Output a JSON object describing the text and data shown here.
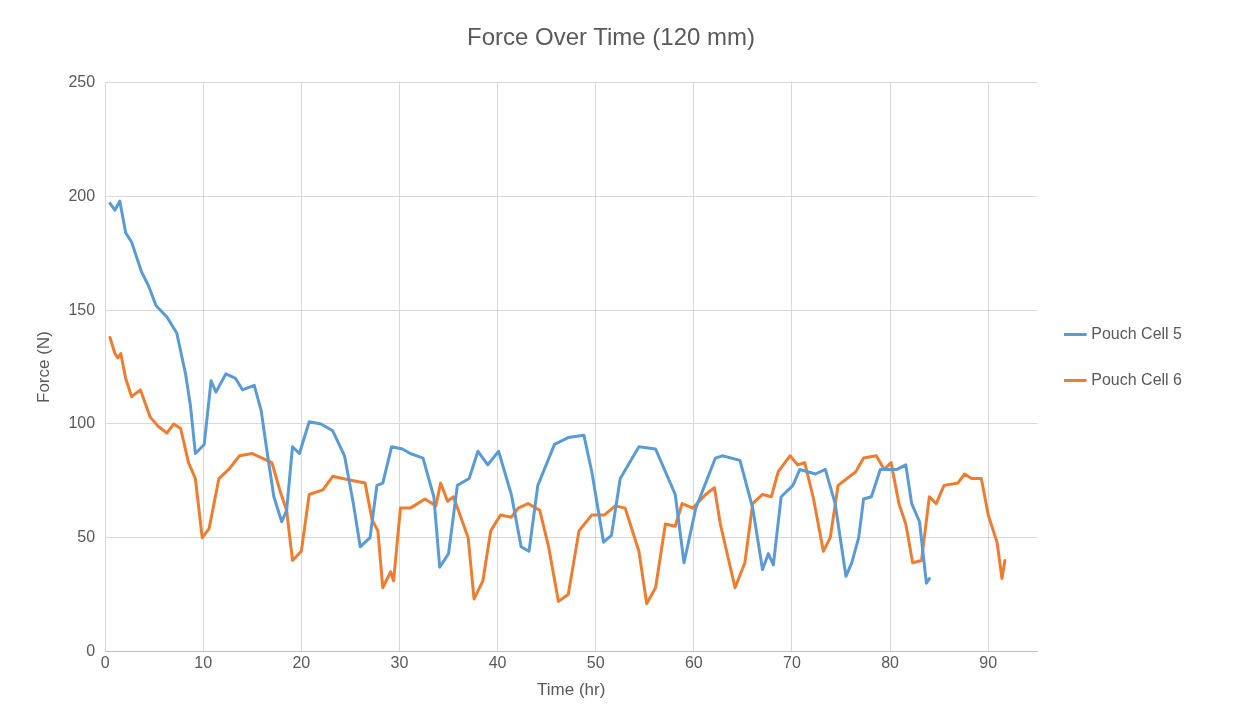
{
  "chart_data": {
    "type": "line",
    "title": "Force Over Time (120 mm)",
    "xlabel": "Time (hr)",
    "ylabel": "Force (N)",
    "xlim": [
      0,
      95
    ],
    "xticks": [
      0,
      10,
      20,
      30,
      40,
      50,
      60,
      70,
      80,
      90
    ],
    "ylim": [
      0,
      250
    ],
    "yticks": [
      0,
      50,
      100,
      150,
      200,
      250
    ],
    "grid": true,
    "legend": "right",
    "marker": "none",
    "line_style": "solid",
    "series": [
      {
        "name": "Pouch Cell 5",
        "color": "#5b9bd5",
        "x": [
          0.5,
          1,
          1.5,
          2.1,
          2.7,
          3.7,
          4.4,
          5.2,
          6.3,
          7.3,
          8.2,
          8.7,
          9.2,
          10.1,
          10.8,
          11.3,
          12.3,
          13.3,
          14,
          15.2,
          15.9,
          16.5,
          17.2,
          18,
          18.5,
          19.1,
          19.8,
          20.8,
          22,
          23.2,
          24.4,
          25.3,
          26,
          27,
          27.7,
          28.3,
          29.2,
          30.3,
          31.1,
          32.4,
          33.5,
          34.1,
          35,
          35.9,
          37.1,
          38,
          39,
          40.1,
          41.4,
          42.4,
          43.2,
          44.1,
          45.8,
          47.2,
          48.8,
          49.6,
          50.8,
          51.6,
          52.5,
          54.4,
          56.1,
          58.1,
          59,
          60.2,
          62.2,
          62.9,
          64.7,
          66,
          67,
          67.6,
          68.1,
          68.9,
          70.1,
          70.8,
          72.4,
          73.4,
          74.4,
          75.5,
          76.1,
          76.8,
          77.3,
          78.1,
          79,
          80.7,
          81.6,
          82.2,
          83,
          83.7,
          84
        ],
        "values": [
          197,
          194,
          198,
          184,
          180,
          167,
          161,
          152,
          147,
          140,
          122,
          108,
          87,
          91,
          119,
          114,
          122,
          120,
          115,
          117,
          106,
          88,
          68,
          57,
          62,
          90,
          87,
          101,
          100,
          97,
          86,
          65,
          46,
          50,
          73,
          74,
          90,
          89,
          87,
          85,
          68,
          37,
          43,
          73,
          76,
          88,
          82,
          88,
          69,
          46,
          44,
          73,
          91,
          94,
          95,
          79,
          48,
          51,
          76,
          90,
          89,
          69,
          39,
          63,
          85,
          86,
          84,
          63,
          36,
          43,
          38,
          68,
          73,
          80,
          78,
          80,
          65,
          33,
          39,
          50,
          67,
          68,
          80,
          80,
          82,
          65,
          57,
          30,
          32
        ]
      },
      {
        "name": "Pouch Cell 6",
        "color": "#ed7d31",
        "x": [
          0.5,
          1,
          1.3,
          1.6,
          2.1,
          2.7,
          3.6,
          4.6,
          5.4,
          6.3,
          7,
          7.7,
          8.5,
          9.2,
          9.9,
          10.6,
          11.6,
          12.6,
          13.7,
          15,
          16,
          17,
          17.8,
          18.5,
          19.1,
          20,
          20.8,
          22.2,
          23.2,
          24.2,
          25.3,
          26.5,
          27.2,
          27.8,
          28.3,
          29.1,
          29.4,
          30.1,
          31.1,
          32.6,
          33.7,
          34.2,
          34.9,
          35.5,
          37,
          37.6,
          38.5,
          39.3,
          40.3,
          41.4,
          42.1,
          43.1,
          44.3,
          45.2,
          46.2,
          47.2,
          48.3,
          49.6,
          50.9,
          52,
          53,
          54.4,
          55.2,
          56.1,
          57.1,
          58.1,
          58.8,
          59.9,
          61.2,
          62.1,
          62.7,
          64.2,
          65.2,
          66,
          67,
          67.9,
          68.6,
          69.8,
          70.6,
          71.3,
          72.2,
          73.2,
          73.9,
          74.7,
          76.5,
          77.3,
          78.6,
          79.4,
          80.1,
          80.9,
          81.6,
          82.3,
          83.2,
          84,
          84.7,
          85.5,
          86.9,
          87.6,
          88.3,
          89.3,
          90,
          90.9,
          91.4,
          91.7
        ],
        "values": [
          138,
          131,
          129,
          131,
          120,
          112,
          115,
          103,
          99,
          96,
          100,
          98,
          83,
          76,
          50,
          54,
          76,
          80,
          86,
          87,
          85,
          83,
          71,
          62,
          40,
          44,
          69,
          71,
          77,
          76,
          75,
          74,
          58,
          53,
          28,
          35,
          31,
          63,
          63,
          67,
          64,
          74,
          66,
          68,
          50,
          23,
          31,
          53,
          60,
          59,
          63,
          65,
          62,
          46,
          22,
          25,
          53,
          60,
          60,
          64,
          63,
          44,
          21,
          28,
          56,
          55,
          65,
          63,
          69,
          72,
          56,
          28,
          39,
          65,
          69,
          68,
          79,
          86,
          82,
          83,
          67,
          44,
          50,
          73,
          79,
          85,
          86,
          80,
          83,
          65,
          56,
          39,
          40,
          68,
          65,
          73,
          74,
          78,
          76,
          76,
          60,
          48,
          32,
          40
        ]
      }
    ]
  }
}
